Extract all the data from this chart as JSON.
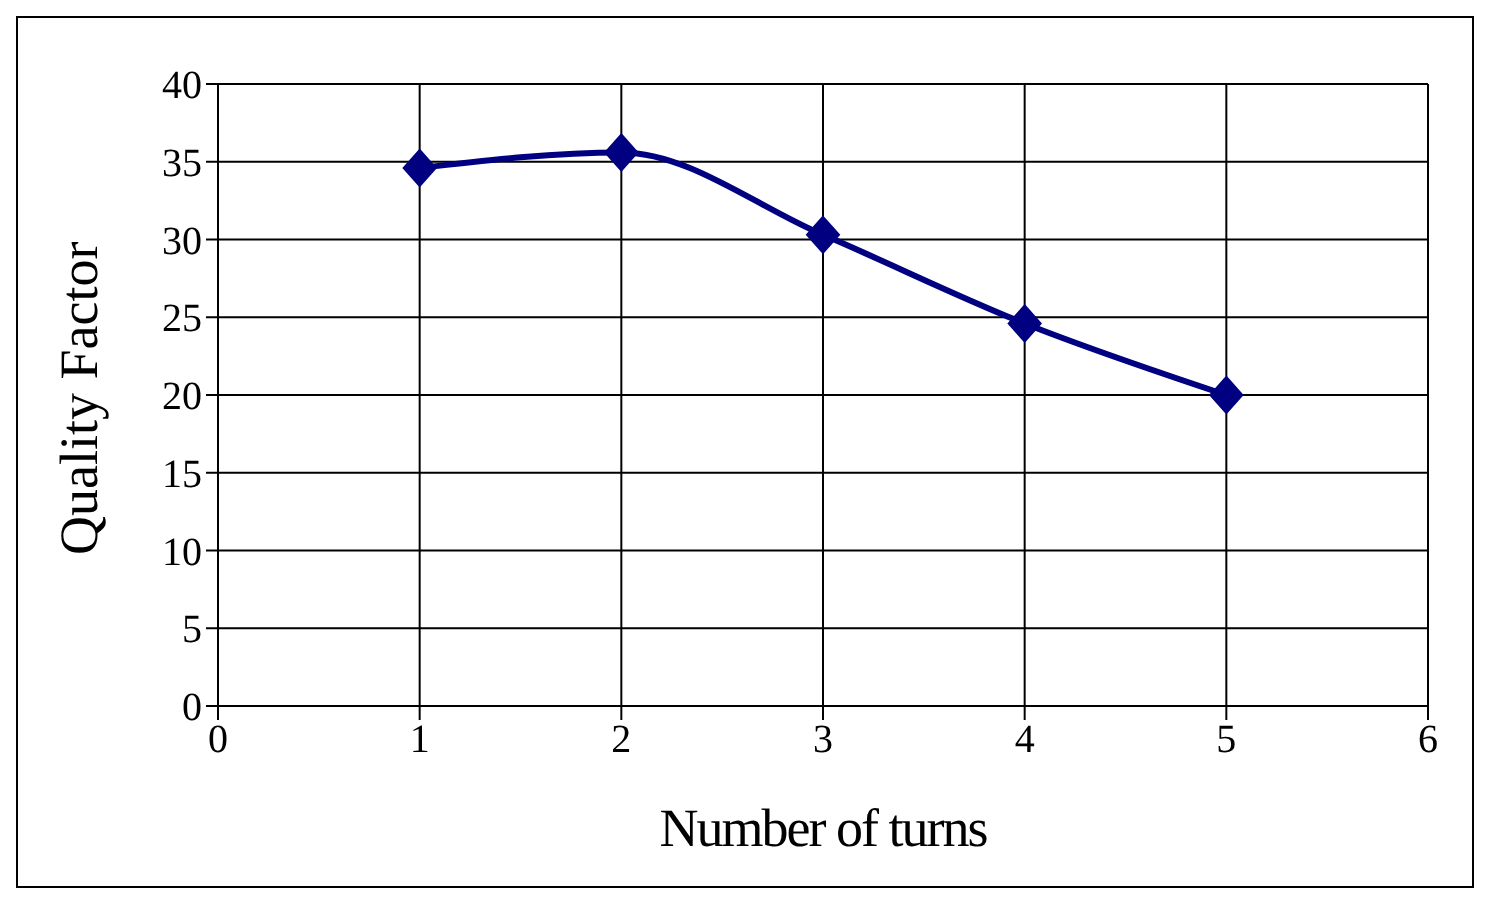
{
  "chart_data": {
    "type": "line",
    "xlabel": "Number of turns",
    "ylabel": "Quality Factor",
    "x": [
      1,
      2,
      3,
      4,
      5
    ],
    "series": [
      {
        "color": "#000080",
        "values": [
          34.6,
          35.6,
          30.3,
          24.6,
          20.0
        ]
      }
    ],
    "xlim": [
      0,
      6
    ],
    "xticks": [
      0,
      1,
      2,
      3,
      4,
      5,
      6
    ],
    "ylim": [
      0,
      40
    ],
    "yticks": [
      0,
      5,
      10,
      15,
      20,
      25,
      30,
      35,
      40
    ],
    "grid": true,
    "marker": "diamond",
    "line_style": "solid",
    "legend": false
  }
}
